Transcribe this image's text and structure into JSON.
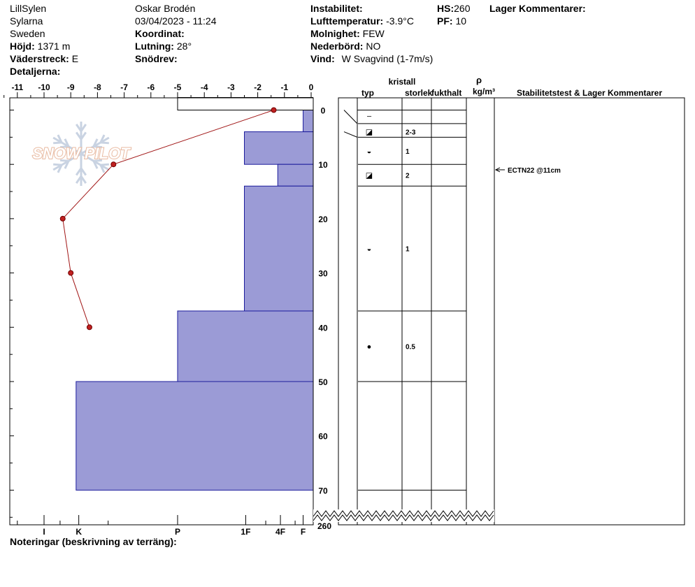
{
  "header": {
    "location": "LillSylen",
    "area": "Sylarna",
    "country": "Sweden",
    "elevation_label": "Höjd:",
    "elevation": "1371 m",
    "aspect_label": "Väderstreck:",
    "aspect": "E",
    "details_label": "Detaljerna:",
    "observer": "Oskar Brodén",
    "datetime": "03/04/2023 - 11:24",
    "coordinate_label": "Koordinat:",
    "slope_label": "Lutning:",
    "slope": "28°",
    "drift_label": "Snödrev:",
    "instability_label": "Instabilitet:",
    "air_temp_label": "Lufttemperatur:",
    "air_temp": "-3.9°C",
    "cloud_label": "Molnighet:",
    "cloud": "FEW",
    "precip_label": "Nederbörd:",
    "precip": "NO",
    "wind_label": "Vind:",
    "wind": "W Svagvind (1-7m/s)",
    "hs_label": "HS:",
    "hs": "260",
    "pf_label": "PF:",
    "pf": "10",
    "layer_comments_label": "Lager Kommentarer:"
  },
  "columns": {
    "crystal": "kristall",
    "type": "typ",
    "size": "storlek",
    "moisture": "fukthalt",
    "rho": "ρ",
    "density_unit": "kg/m³",
    "stability": "Stabilitetstest & Lager Kommentarer"
  },
  "logo_text": "SNOW PILOT",
  "notes_label": "Noteringar (beskrivning av terräng):",
  "chart_data": {
    "type": "snow-profile",
    "temp_axis": {
      "ticks": [
        -11,
        -10,
        -9,
        -8,
        -7,
        -6,
        -5,
        -4,
        -3,
        -2,
        -1,
        0
      ],
      "range": [
        -11.5,
        0
      ]
    },
    "depth_axis": {
      "ticks": [
        0,
        10,
        20,
        30,
        40,
        50,
        60,
        70
      ],
      "bottom_label": "260",
      "range_shown": [
        0,
        76
      ]
    },
    "hardness_axis": {
      "labels": [
        {
          "label": "I",
          "temp": -10
        },
        {
          "label": "K",
          "temp": -8.7
        },
        {
          "label": "P",
          "temp": -5
        },
        {
          "label": "1F",
          "temp": -2.45
        },
        {
          "label": "4F",
          "temp": -1.15
        },
        {
          "label": "F",
          "temp": -0.3
        }
      ]
    },
    "temperature_profile": [
      {
        "depth": 0,
        "temp": -1.4
      },
      {
        "depth": 10,
        "temp": -7.4
      },
      {
        "depth": 20,
        "temp": -9.3
      },
      {
        "depth": 30,
        "temp": -9
      },
      {
        "depth": 40,
        "temp": -8.3
      }
    ],
    "hardness_layers": [
      {
        "top": 0,
        "bottom": 4,
        "hardness_temp": -0.3
      },
      {
        "top": 4,
        "bottom": 10,
        "hardness_temp": -2.5
      },
      {
        "top": 10,
        "bottom": 14,
        "hardness_temp": -1.25
      },
      {
        "top": 14,
        "bottom": 37,
        "hardness_temp": -2.5
      },
      {
        "top": 37,
        "bottom": 50,
        "hardness_temp": -5
      },
      {
        "top": 50,
        "bottom": 70,
        "hardness_temp": -8.8
      }
    ],
    "surface_outline_temp": -5,
    "layer_boundaries": [
      2.5,
      5,
      10,
      14,
      37,
      50,
      70
    ],
    "grains": [
      {
        "depth": 1,
        "glyph": "–",
        "size": ""
      },
      {
        "depth": 4,
        "glyph": "◪",
        "size": "2-3"
      },
      {
        "depth": 7.5,
        "glyph": "◒",
        "size": "1"
      },
      {
        "depth": 12,
        "glyph": "◪",
        "size": "2"
      },
      {
        "depth": 25.5,
        "glyph": "◒",
        "size": "1"
      },
      {
        "depth": 43.5,
        "glyph": "●",
        "size": "0.5"
      }
    ],
    "stability_tests": [
      {
        "depth": 11,
        "label": "ECTN22 @11cm"
      }
    ]
  }
}
